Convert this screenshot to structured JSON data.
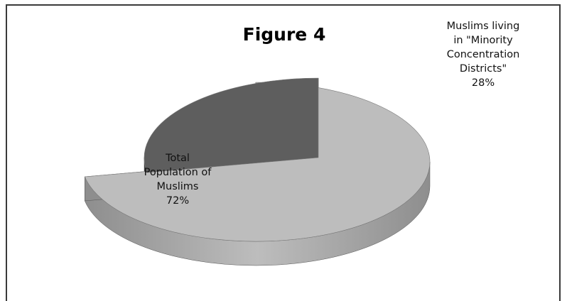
{
  "chart_data": {
    "type": "pie",
    "title": "Figure 4",
    "slices": [
      {
        "label_lines": [
          "Total",
          "Population of",
          "Muslims",
          "72%"
        ],
        "value": 72,
        "color": "#bdbdbd",
        "side": "#8e8e8e"
      },
      {
        "label_lines": [
          "Muslims living",
          "in \"Minority",
          "Concentration",
          "Districts\"",
          "28%"
        ],
        "value": 28,
        "color": "#5e5e5e",
        "side": "#2a2a2a"
      }
    ],
    "style": "3d-exploded"
  }
}
